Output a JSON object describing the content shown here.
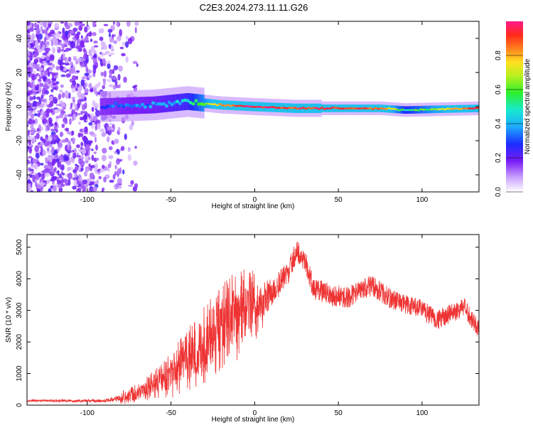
{
  "title": "C2E3.2024.273.11.11.G26",
  "colors": {
    "snr_line": "#ee3333",
    "spectrum_scatter": "#7a22e0",
    "axis": "#000000",
    "background": "#ffffff"
  },
  "chart_data": [
    {
      "type": "heatmap",
      "xlabel": "Height of straight line (km)",
      "ylabel": "Frequency (Hz)",
      "xlim": [
        -136,
        134
      ],
      "ylim": [
        -50,
        50
      ],
      "xticks": [
        -100,
        -50,
        0,
        50,
        100
      ],
      "yticks": [
        -40,
        -20,
        0,
        20,
        40
      ],
      "colorbar": {
        "label": "Normalized spectral amplitude",
        "range": [
          0,
          1
        ],
        "ticks": [
          "0.0",
          "0.2",
          "0.4",
          "0.6",
          "0.8"
        ],
        "colormap": "rainbow-to-magenta"
      },
      "ridge": {
        "description_points": [
          {
            "x": -90,
            "freq": 0,
            "amp": 0.3
          },
          {
            "x": -60,
            "freq": 1,
            "amp": 0.35
          },
          {
            "x": -40,
            "freq": 3,
            "amp": 0.45
          },
          {
            "x": -20,
            "freq": 1,
            "amp": 0.85
          },
          {
            "x": 0,
            "freq": 0,
            "amp": 0.95
          },
          {
            "x": 25,
            "freq": -1,
            "amp": 0.9
          },
          {
            "x": 75,
            "freq": -1,
            "amp": 0.9
          },
          {
            "x": 90,
            "freq": -2,
            "amp": 0.5
          },
          {
            "x": 134,
            "freq": -1,
            "amp": 0.95
          }
        ]
      }
    },
    {
      "type": "line",
      "xlabel": "Height of straight line (km)",
      "ylabel": "SNR (10 * v/v)",
      "xlim": [
        -136,
        134
      ],
      "ylim": [
        0,
        5400
      ],
      "xticks": [
        -100,
        -50,
        0,
        50,
        100
      ],
      "yticks": [
        0,
        1000,
        2000,
        3000,
        4000,
        5000
      ],
      "series": [
        {
          "name": "",
          "color": "#ee3333",
          "envelope": [
            {
              "x": -136,
              "y": 150
            },
            {
              "x": -90,
              "y": 150
            },
            {
              "x": -80,
              "y": 250
            },
            {
              "x": -70,
              "y": 400
            },
            {
              "x": -60,
              "y": 700
            },
            {
              "x": -50,
              "y": 1000
            },
            {
              "x": -40,
              "y": 1500
            },
            {
              "x": -30,
              "y": 2000
            },
            {
              "x": -20,
              "y": 2600
            },
            {
              "x": -10,
              "y": 3000
            },
            {
              "x": 0,
              "y": 3300
            },
            {
              "x": 10,
              "y": 3700
            },
            {
              "x": 20,
              "y": 4300
            },
            {
              "x": 25,
              "y": 5000
            },
            {
              "x": 30,
              "y": 4700
            },
            {
              "x": 35,
              "y": 3800
            },
            {
              "x": 45,
              "y": 3600
            },
            {
              "x": 55,
              "y": 3500
            },
            {
              "x": 70,
              "y": 3900
            },
            {
              "x": 80,
              "y": 3500
            },
            {
              "x": 100,
              "y": 3100
            },
            {
              "x": 110,
              "y": 2800
            },
            {
              "x": 125,
              "y": 3200
            },
            {
              "x": 134,
              "y": 2500
            }
          ],
          "spread": [
            {
              "x": -136,
              "s": 60
            },
            {
              "x": -90,
              "s": 80
            },
            {
              "x": -60,
              "s": 400
            },
            {
              "x": -30,
              "s": 1200
            },
            {
              "x": -10,
              "s": 1300
            },
            {
              "x": 20,
              "s": 600
            },
            {
              "x": 134,
              "s": 500
            }
          ]
        }
      ]
    }
  ]
}
